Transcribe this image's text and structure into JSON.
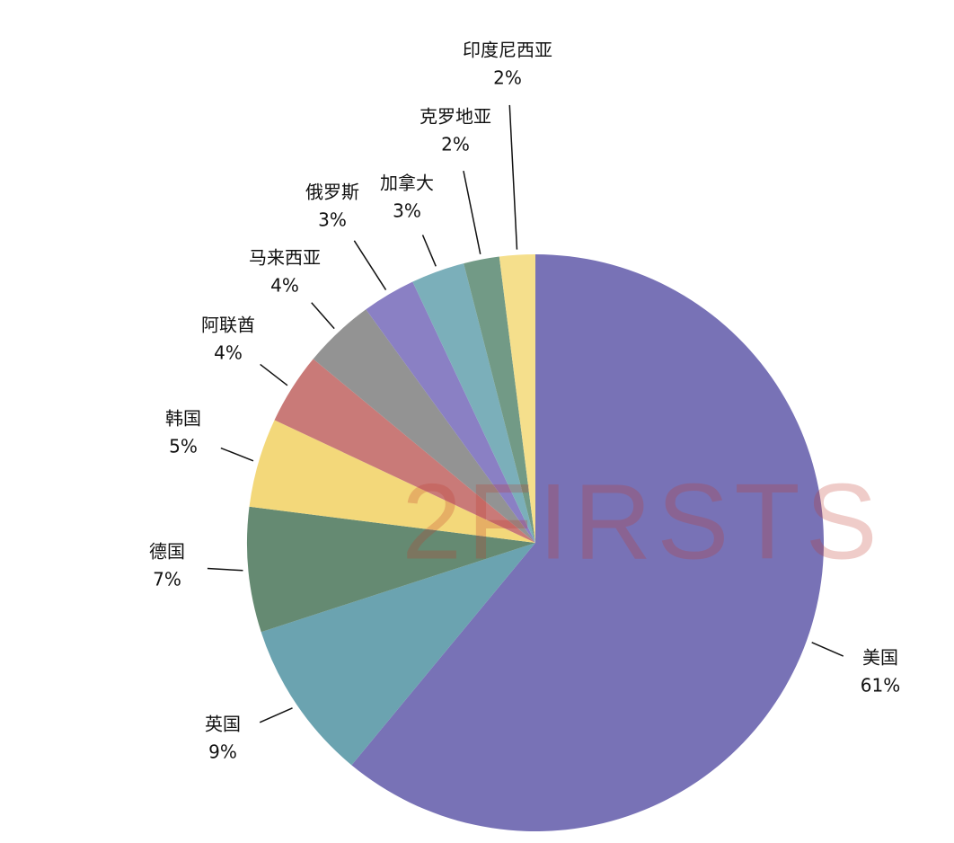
{
  "chart_data": {
    "type": "pie",
    "categories": [
      "美国",
      "英国",
      "德国",
      "韩国",
      "阿联酋",
      "马来西亚",
      "俄罗斯",
      "加拿大",
      "克罗地亚",
      "印度尼西亚"
    ],
    "values": [
      61,
      9,
      7,
      5,
      4,
      4,
      3,
      3,
      2,
      2
    ],
    "value_labels": [
      "61%",
      "9%",
      "7%",
      "5%",
      "4%",
      "4%",
      "3%",
      "3%",
      "2%",
      "2%"
    ],
    "colors": [
      "#7872b6",
      "#6ba3b0",
      "#658a72",
      "#f3d87a",
      "#c97a78",
      "#939393",
      "#8a80c4",
      "#7bafba",
      "#729a86",
      "#f5df8c"
    ],
    "watermark": "2FIRSTS"
  }
}
